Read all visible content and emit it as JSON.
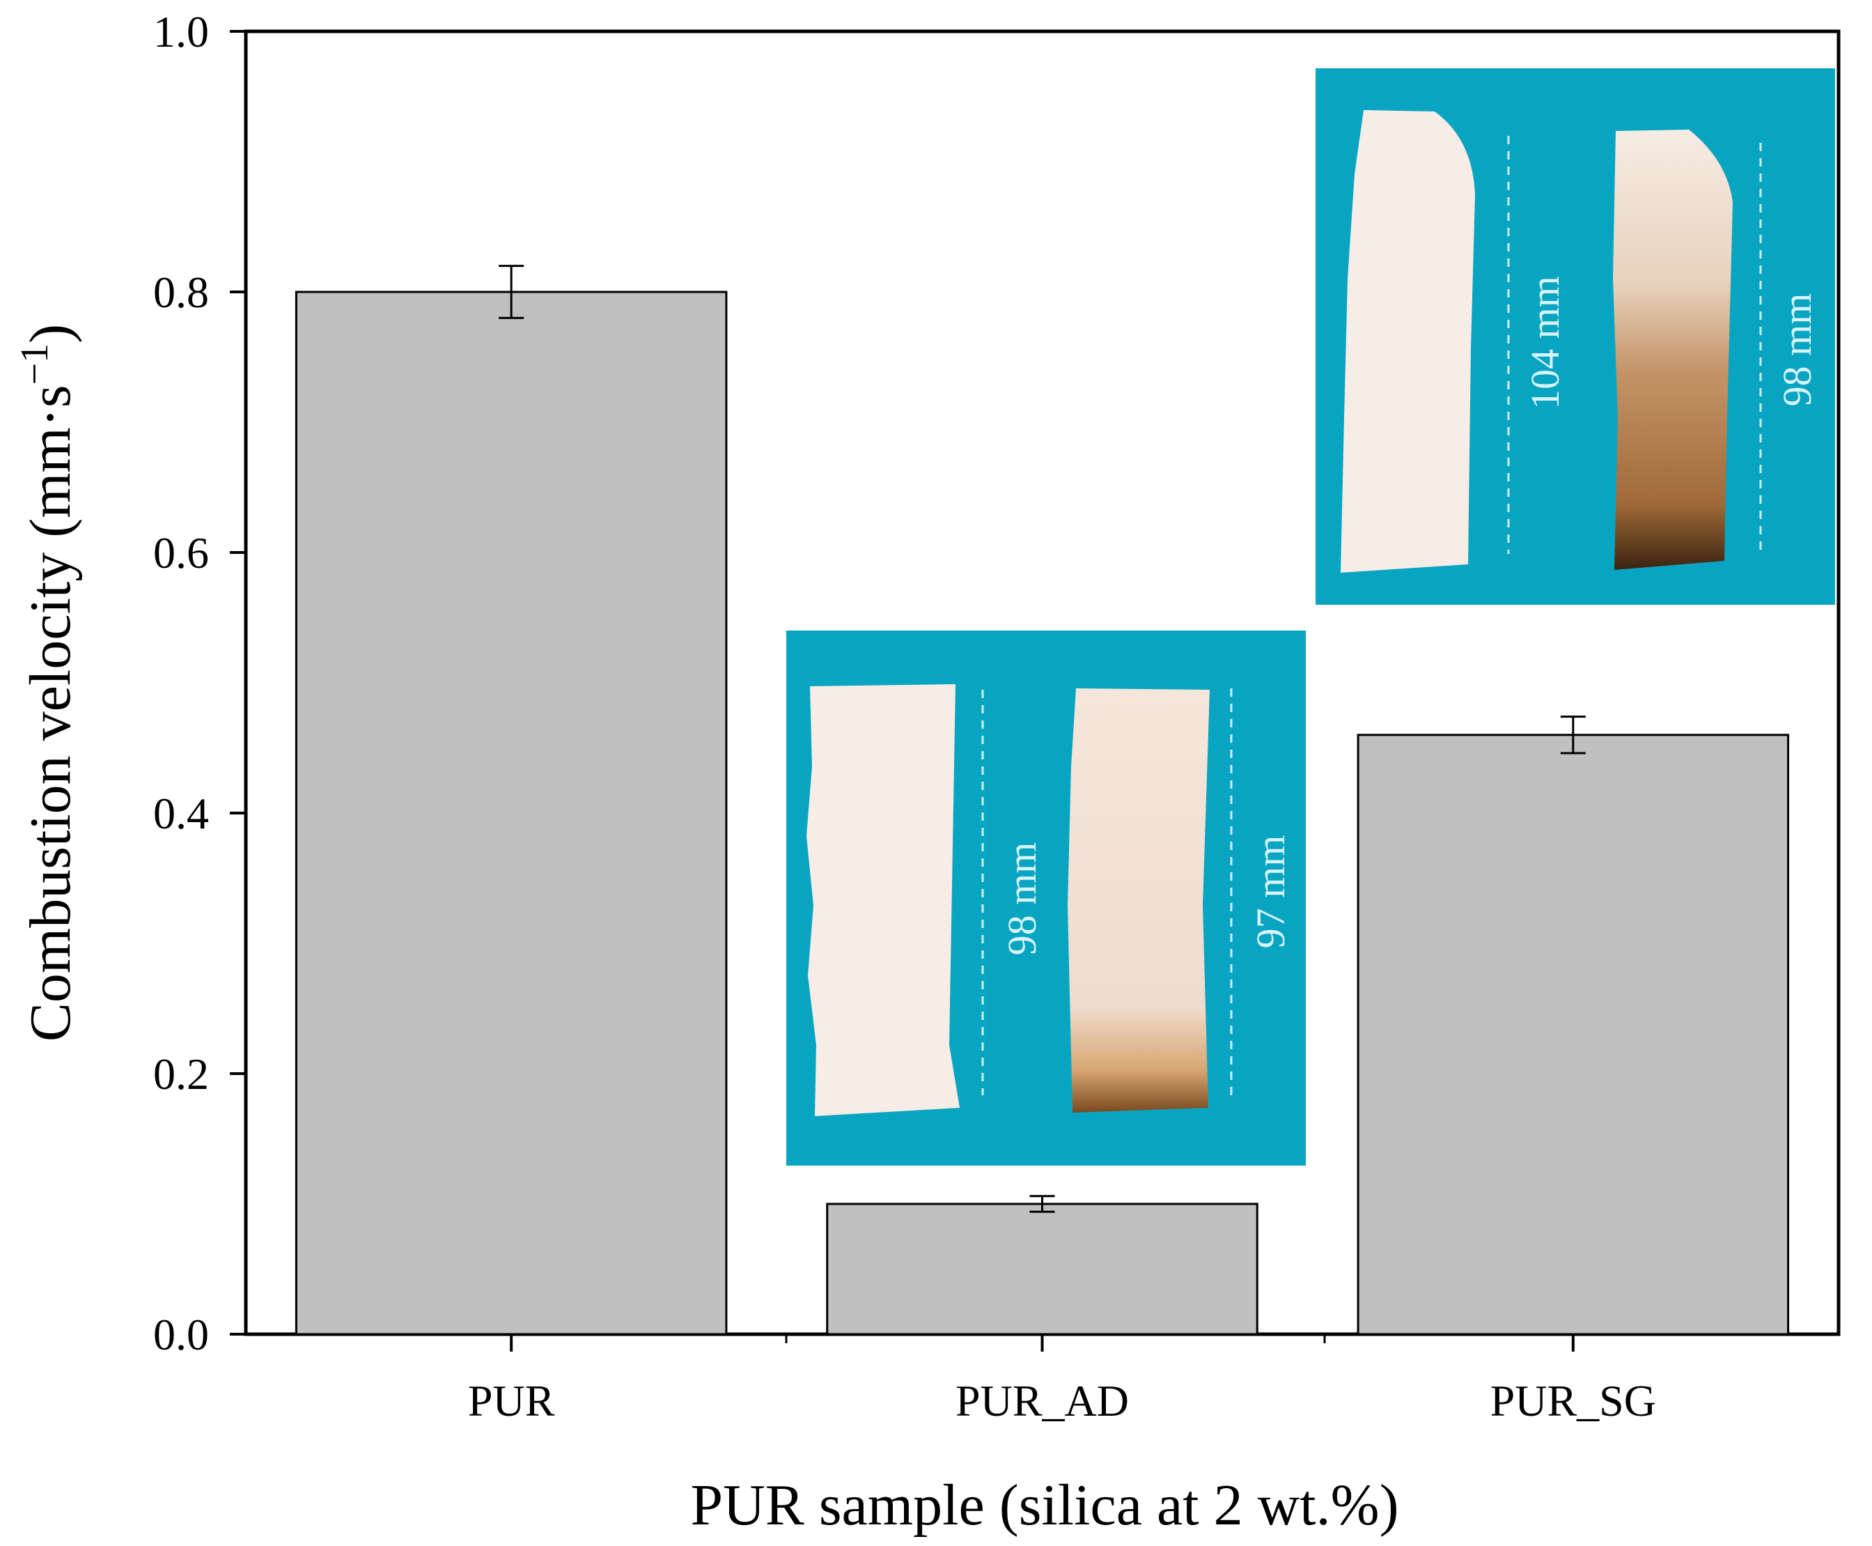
{
  "chart_data": {
    "type": "bar",
    "categories": [
      "PUR",
      "PUR_AD",
      "PUR_SG"
    ],
    "values": [
      0.8,
      0.1,
      0.46
    ],
    "errors": [
      0.02,
      0.006,
      0.014
    ],
    "xlabel": "PUR sample (silica at 2 wt.%)",
    "ylabel": "Combustion velocity (mm·s",
    "ylabel_unit_exp": "−1",
    "ylabel_close": ")",
    "ylim": [
      0.0,
      1.0
    ],
    "yticks": [
      "0.0",
      "0.2",
      "0.4",
      "0.6",
      "0.8",
      "1.0"
    ],
    "bar_color": "#c0c0c0",
    "grid": false
  },
  "insets": {
    "ad": {
      "background": "#08a5c2",
      "labels": [
        "98 mm",
        "97 mm"
      ]
    },
    "sg": {
      "background": "#08a5c2",
      "labels": [
        "104 mm",
        "98 mm"
      ]
    }
  }
}
